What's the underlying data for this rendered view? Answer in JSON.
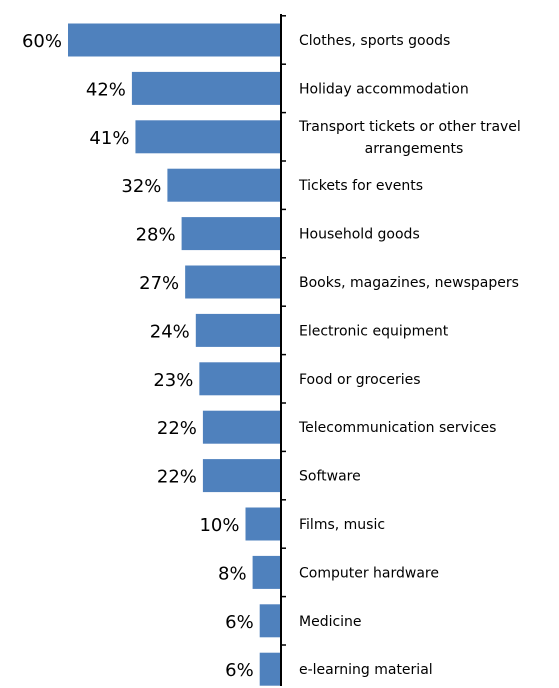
{
  "chart_data": {
    "type": "bar",
    "orientation": "horizontal",
    "categories": [
      "Clothes, sports goods",
      "Holiday accommodation",
      [
        "Transport tickets or other travel",
        "arrangements"
      ],
      "Tickets for events",
      "Household goods",
      "Books, magazines, newspapers",
      "Electronic equipment",
      "Food or groceries",
      "Telecommunication services",
      "Software",
      "Films, music",
      "Computer hardware",
      "Medicine",
      "e-learning material"
    ],
    "values": [
      60,
      42,
      41,
      32,
      28,
      27,
      24,
      23,
      22,
      22,
      10,
      8,
      6,
      6
    ],
    "value_labels": [
      "60%",
      "42%",
      "41%",
      "32%",
      "28%",
      "27%",
      "24%",
      "23%",
      "22%",
      "22%",
      "10%",
      "8%",
      "6%",
      "6%"
    ],
    "xlim": [
      0,
      60
    ],
    "bar_direction": "right-to-left",
    "grid": false,
    "legend": false,
    "colors": {
      "bar": "#4f81bd",
      "axis": "#000000",
      "text": "#000000"
    }
  }
}
